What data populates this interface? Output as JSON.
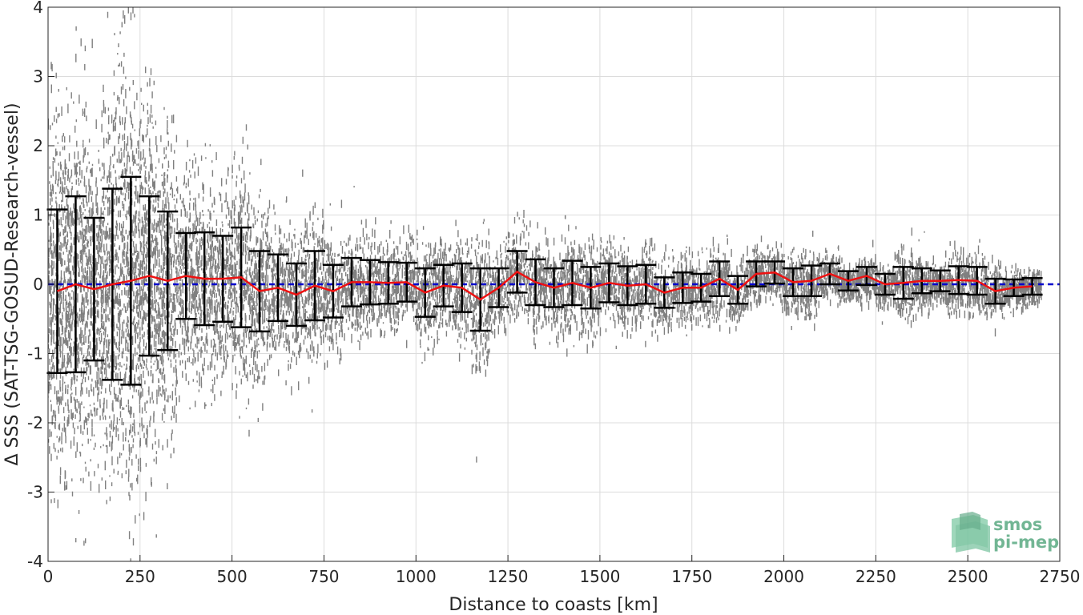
{
  "chart_data": {
    "type": "scatter",
    "xlabel": "Distance to coasts [km]",
    "ylabel": "Δ SSS (SAT-TSG-GOSUD-Research-vessel)",
    "xlim": [
      0,
      2750
    ],
    "ylim": [
      -4,
      4
    ],
    "xticks": [
      "0",
      "250",
      "500",
      "750",
      "1000",
      "1250",
      "1500",
      "1750",
      "2000",
      "2250",
      "2500",
      "2750"
    ],
    "yticks": [
      "-4",
      "-3",
      "-2",
      "-1",
      "0",
      "1",
      "2",
      "3",
      "4"
    ],
    "grid": true,
    "reference_line": {
      "y": 0,
      "color": "#0000cc",
      "style": "dashed"
    },
    "colors": {
      "scatter": "#808080",
      "mean_line": "#ee1111",
      "error_bars": "#000000"
    },
    "binned": {
      "x": [
        25,
        75,
        125,
        175,
        225,
        275,
        325,
        375,
        425,
        475,
        525,
        575,
        625,
        675,
        725,
        775,
        825,
        875,
        925,
        975,
        1025,
        1075,
        1125,
        1175,
        1225,
        1275,
        1325,
        1375,
        1425,
        1475,
        1525,
        1575,
        1625,
        1675,
        1725,
        1775,
        1825,
        1875,
        1925,
        1975,
        2025,
        2075,
        2125,
        2175,
        2225,
        2275,
        2325,
        2375,
        2425,
        2475,
        2525,
        2575,
        2625,
        2675
      ],
      "mean": [
        -0.1,
        0.0,
        -0.07,
        0.0,
        0.05,
        0.12,
        0.05,
        0.12,
        0.08,
        0.08,
        0.1,
        -0.1,
        -0.05,
        -0.15,
        -0.02,
        -0.1,
        0.03,
        0.03,
        0.02,
        0.03,
        -0.12,
        -0.02,
        -0.05,
        -0.22,
        -0.05,
        0.18,
        0.03,
        -0.05,
        0.02,
        -0.05,
        0.02,
        -0.02,
        0.0,
        -0.12,
        -0.05,
        -0.05,
        0.08,
        -0.08,
        0.15,
        0.17,
        0.03,
        0.05,
        0.15,
        0.05,
        0.12,
        0.0,
        0.02,
        0.05,
        0.05,
        0.06,
        0.05,
        -0.1,
        -0.05,
        -0.03
      ],
      "std": [
        1.18,
        1.27,
        1.03,
        1.38,
        1.5,
        1.15,
        1.0,
        0.62,
        0.67,
        0.62,
        0.72,
        0.58,
        0.48,
        0.45,
        0.5,
        0.38,
        0.35,
        0.32,
        0.3,
        0.28,
        0.35,
        0.3,
        0.35,
        0.45,
        0.28,
        0.3,
        0.33,
        0.28,
        0.32,
        0.3,
        0.28,
        0.28,
        0.28,
        0.22,
        0.22,
        0.2,
        0.25,
        0.2,
        0.18,
        0.16,
        0.2,
        0.22,
        0.15,
        0.14,
        0.13,
        0.15,
        0.23,
        0.18,
        0.15,
        0.2,
        0.2,
        0.18,
        0.12,
        0.12
      ]
    }
  },
  "watermark": {
    "line1": "smos",
    "line2": "pi-mep",
    "icon": "smos-wave-logo-icon",
    "color": "#5aaa82"
  }
}
